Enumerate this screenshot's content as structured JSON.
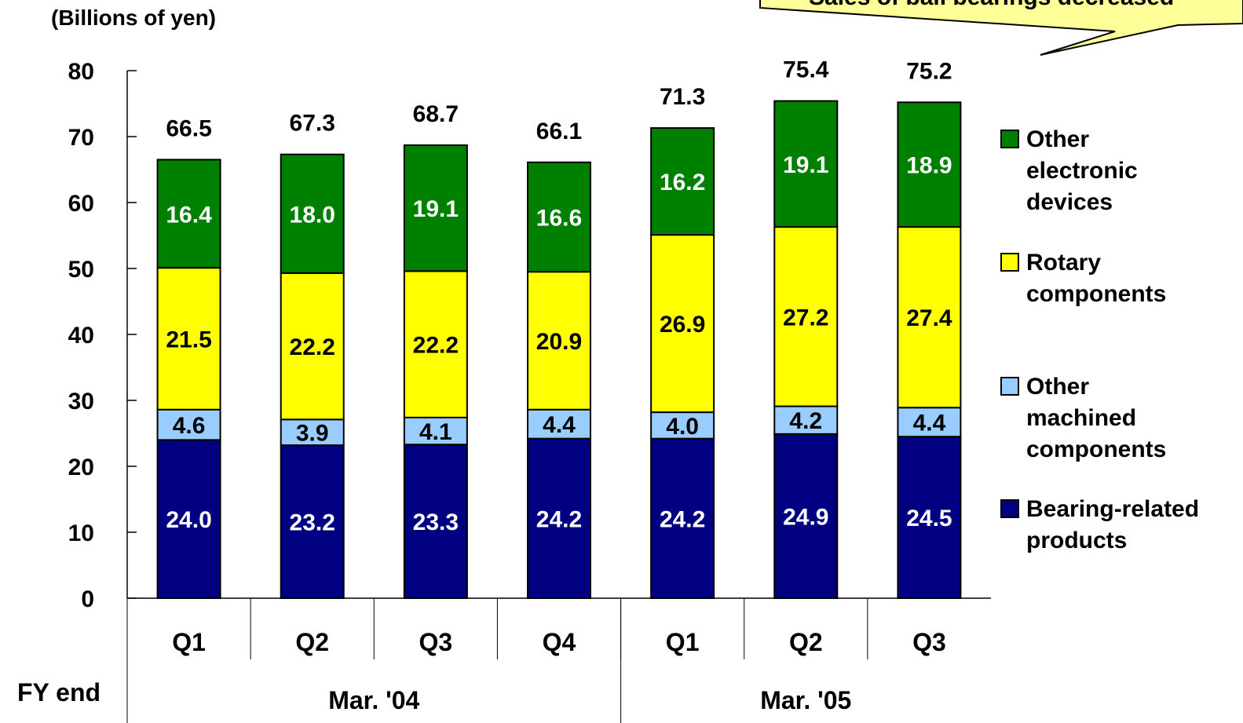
{
  "chart_data": {
    "type": "bar",
    "stacked": true,
    "ylabel": "(Billions of yen)",
    "ylim": [
      0,
      80
    ],
    "yticks": [
      0,
      10,
      20,
      30,
      40,
      50,
      60,
      70,
      80
    ],
    "categories": [
      "Q1",
      "Q2",
      "Q3",
      "Q4",
      "Q1",
      "Q2",
      "Q3"
    ],
    "groups": [
      {
        "label": "Mar. '04",
        "count": 4
      },
      {
        "label": "Mar. '05",
        "count": 3
      }
    ],
    "group_axis_label": "FY end",
    "totals": [
      66.5,
      67.3,
      68.7,
      66.1,
      71.3,
      75.4,
      75.2
    ],
    "series": [
      {
        "name": "Bearing-related products",
        "color": "#000080",
        "label_color": "#ffffff",
        "values": [
          24.0,
          23.2,
          23.3,
          24.2,
          24.2,
          24.9,
          24.5
        ]
      },
      {
        "name": "Other machined components",
        "color": "#99ccff",
        "label_color": "#000000",
        "values": [
          4.6,
          3.9,
          4.1,
          4.4,
          4.0,
          4.2,
          4.4
        ]
      },
      {
        "name": "Rotary components",
        "color": "#ffff00",
        "label_color": "#000000",
        "values": [
          21.5,
          22.2,
          22.2,
          20.9,
          26.9,
          27.2,
          27.4
        ]
      },
      {
        "name": "Other electronic devices",
        "color": "#008000",
        "label_color": "#ffffff",
        "values": [
          16.4,
          18.0,
          19.1,
          16.6,
          16.2,
          19.1,
          18.9
        ]
      }
    ],
    "legend_position": "right",
    "legend_lines": [
      [
        "Other",
        "electronic",
        "devices"
      ],
      [
        "Rotary",
        "components"
      ],
      [
        "Other",
        "machined",
        "components"
      ],
      [
        "Bearing-related",
        "products"
      ]
    ],
    "callout": {
      "text": "Sales of ball bearings decreased",
      "color": "#ffff99"
    }
  }
}
